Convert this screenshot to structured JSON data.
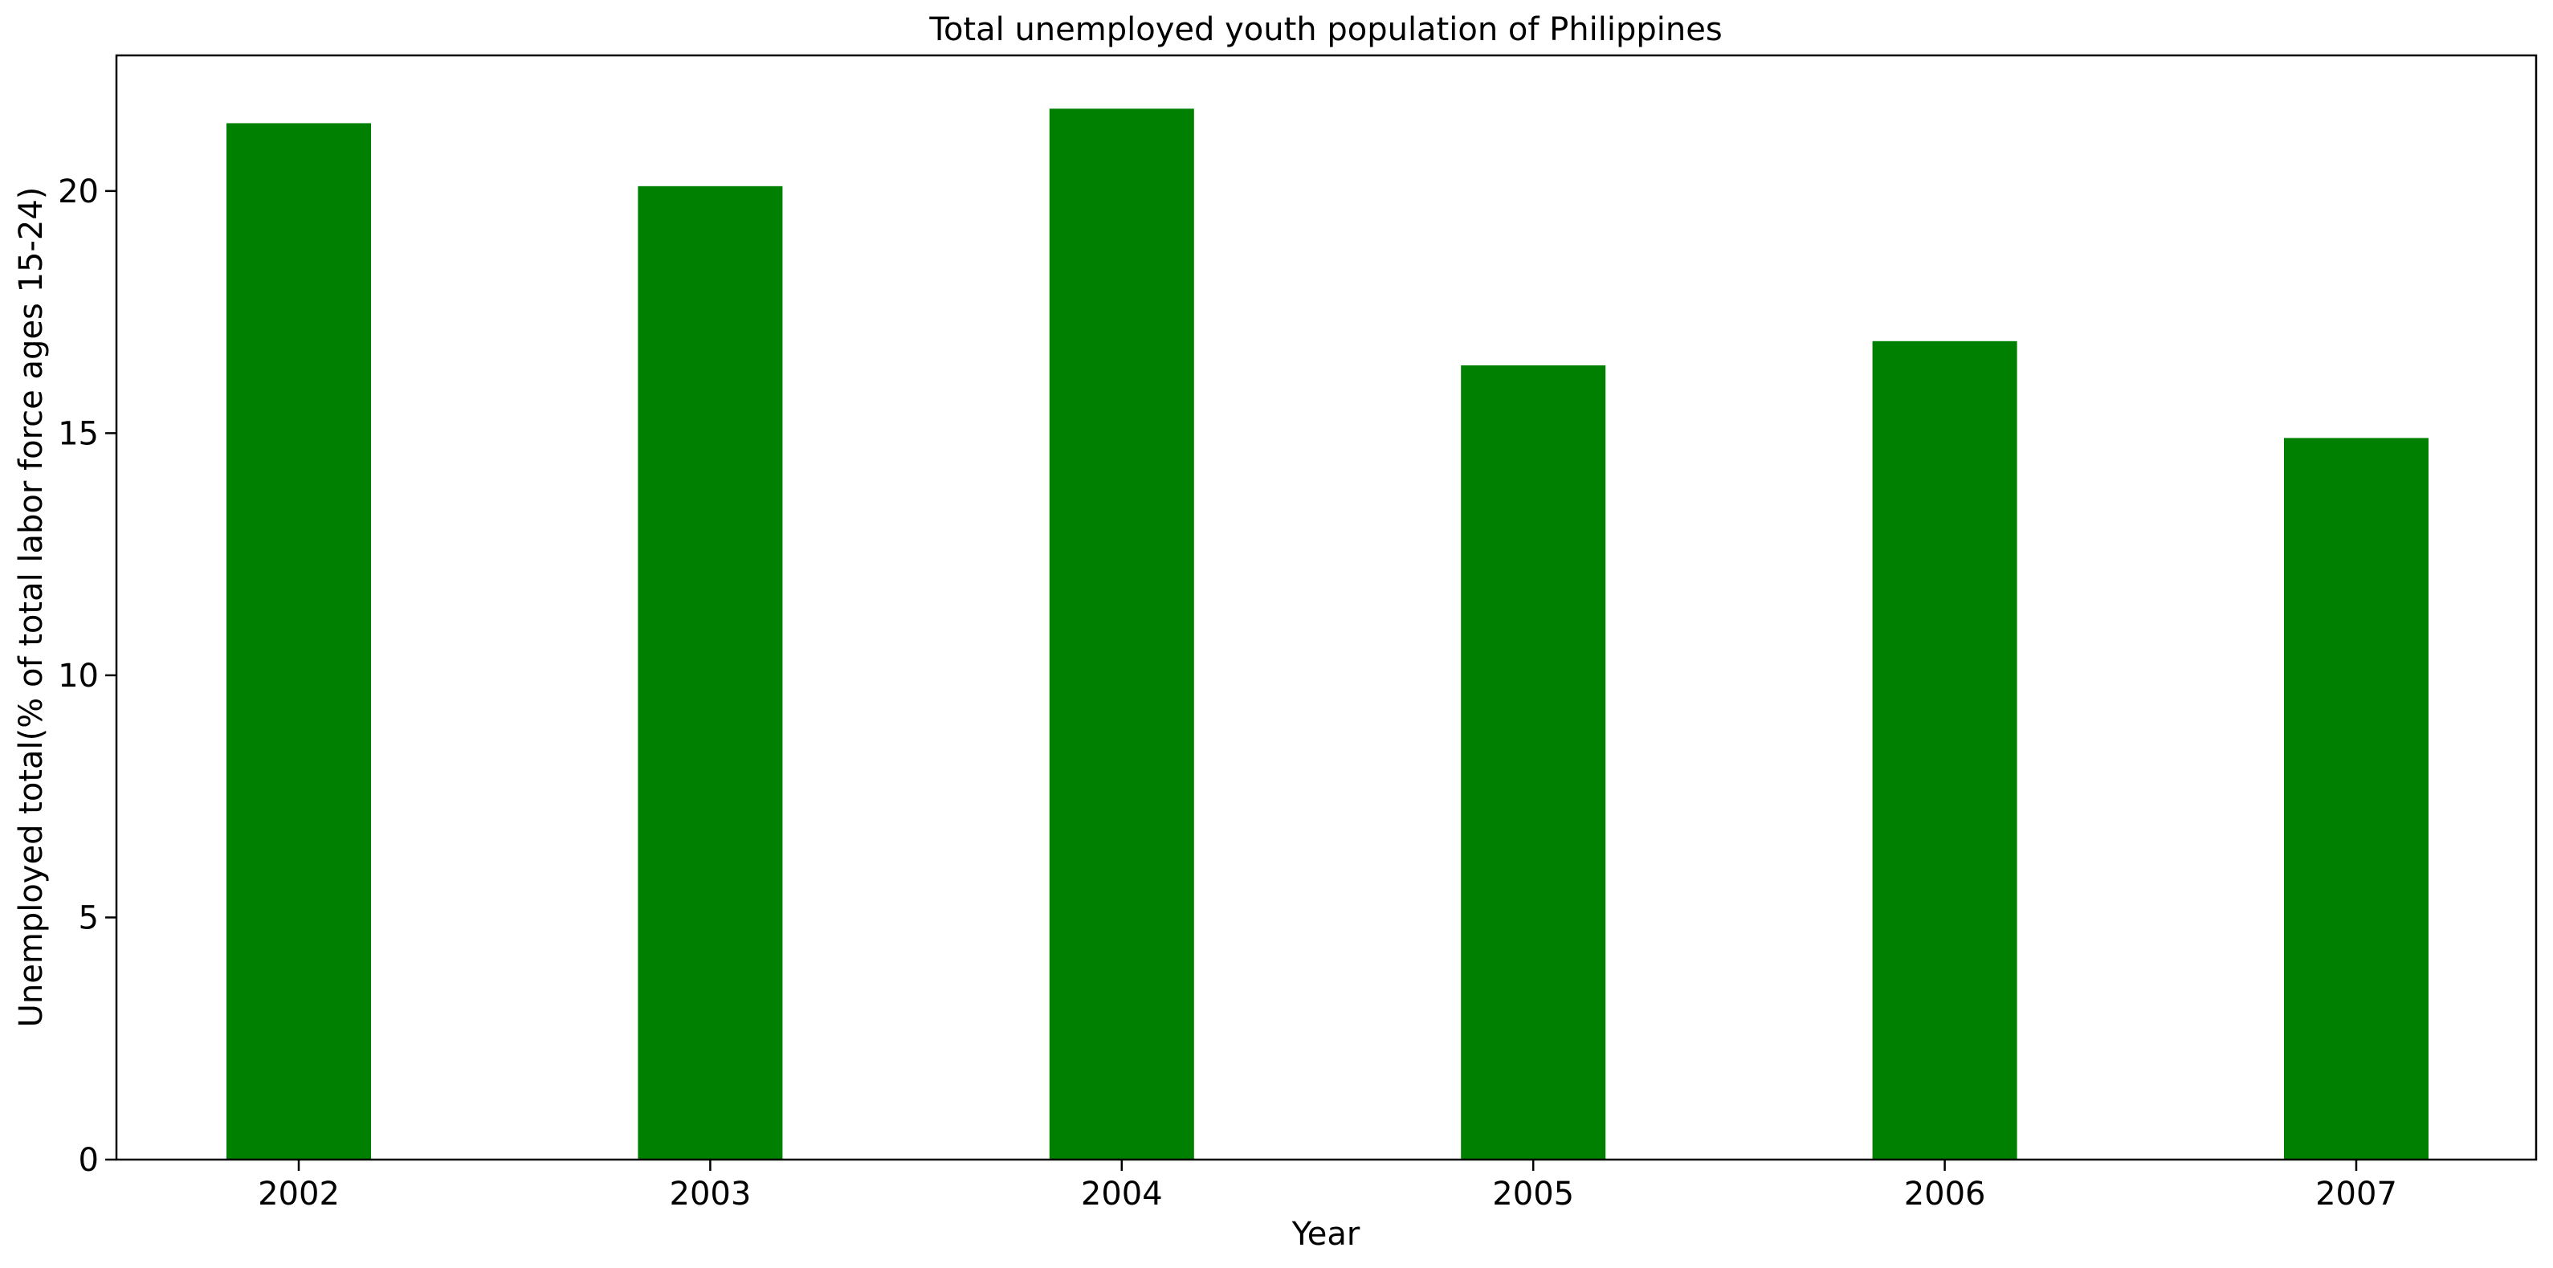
{
  "chart_data": {
    "type": "bar",
    "title": "Total unemployed youth population of Philippines",
    "xlabel": "Year",
    "ylabel": "Unemployed total(% of total labor force ages 15-24)",
    "categories": [
      "2002",
      "2003",
      "2004",
      "2005",
      "2006",
      "2007"
    ],
    "values": [
      21.4,
      20.1,
      21.7,
      16.4,
      16.9,
      14.9
    ],
    "ylim": [
      0,
      22.8
    ],
    "yticks": [
      0,
      5,
      10,
      15,
      20
    ],
    "bar_color": "#008000",
    "grid": false,
    "legend": "none"
  }
}
